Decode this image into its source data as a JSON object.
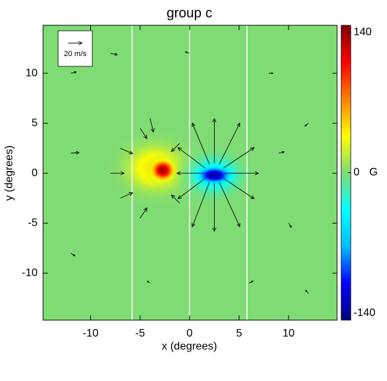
{
  "chart_data": {
    "type": "quiver",
    "title": "group c",
    "xlabel": "x (degrees)",
    "ylabel": "y (degrees)",
    "xlim": [
      -14.8,
      14.9
    ],
    "ylim": [
      -14.7,
      14.8
    ],
    "xticks": [
      -10,
      -5,
      0,
      5,
      10
    ],
    "yticks": [
      -10,
      -5,
      0,
      5,
      10
    ],
    "vlines": [
      -5.8,
      0,
      5.8
    ],
    "background": 0,
    "blobs": [
      {
        "x": -3.5,
        "y": 0.5,
        "rx": 5,
        "ry": 4,
        "value": 45
      },
      {
        "x": -2.7,
        "y": 0.3,
        "rx": 1.8,
        "ry": 1.6,
        "value": 140
      },
      {
        "x": 2.5,
        "y": -0.2,
        "rx": 4.2,
        "ry": 3,
        "value": -55
      },
      {
        "x": 2.5,
        "y": -0.2,
        "rx": 2.8,
        "ry": 1.4,
        "value": -140
      }
    ],
    "colorbar": {
      "clim": [
        -147,
        147
      ],
      "ticks": [
        140,
        0,
        -140
      ],
      "label": "G",
      "colors": [
        "#000080",
        "#0000ff",
        "#00bfff",
        "#00ffff",
        "#7fdc74",
        "#ffff00",
        "#ff8000",
        "#ff0000",
        "#800000"
      ]
    },
    "reference": {
      "speed": 20,
      "label": "20 m/s"
    },
    "vectors": {
      "x": [
        3.5,
        3.4,
        3,
        2.5,
        2,
        1.6,
        1.5,
        1.6,
        2,
        2.5,
        3,
        3.4,
        -8,
        -7,
        -7,
        -5,
        -5,
        -4,
        -1,
        -1,
        -12,
        -8,
        0,
        8,
        12,
        10,
        -12,
        -4,
        6,
        12,
        -12,
        9
      ],
      "y": [
        0,
        0.5,
        0.9,
        1,
        0.9,
        0.5,
        0,
        -0.5,
        -0.9,
        -1,
        -0.9,
        -0.5,
        0,
        2.5,
        -2.5,
        4.5,
        -4.5,
        5.5,
        3,
        -3,
        10,
        12,
        12,
        10,
        5,
        -5,
        -8,
        -11,
        -11,
        -12,
        2,
        2
      ],
      "u": [
        50,
        45,
        30,
        0,
        -25,
        -40,
        -40,
        -40,
        -25,
        0,
        30,
        45,
        20,
        18,
        18,
        10,
        10,
        5,
        -12,
        -12,
        8,
        10,
        -6,
        6,
        -5,
        4,
        6,
        -4,
        6,
        -4,
        12,
        8
      ],
      "v": [
        0,
        30,
        60,
        65,
        60,
        30,
        0,
        -30,
        -65,
        -70,
        -65,
        -30,
        0,
        -8,
        8,
        -15,
        15,
        -20,
        -12,
        12,
        2,
        -2,
        2,
        0,
        -4,
        -6,
        -4,
        3,
        3,
        4,
        1,
        2
      ]
    }
  }
}
